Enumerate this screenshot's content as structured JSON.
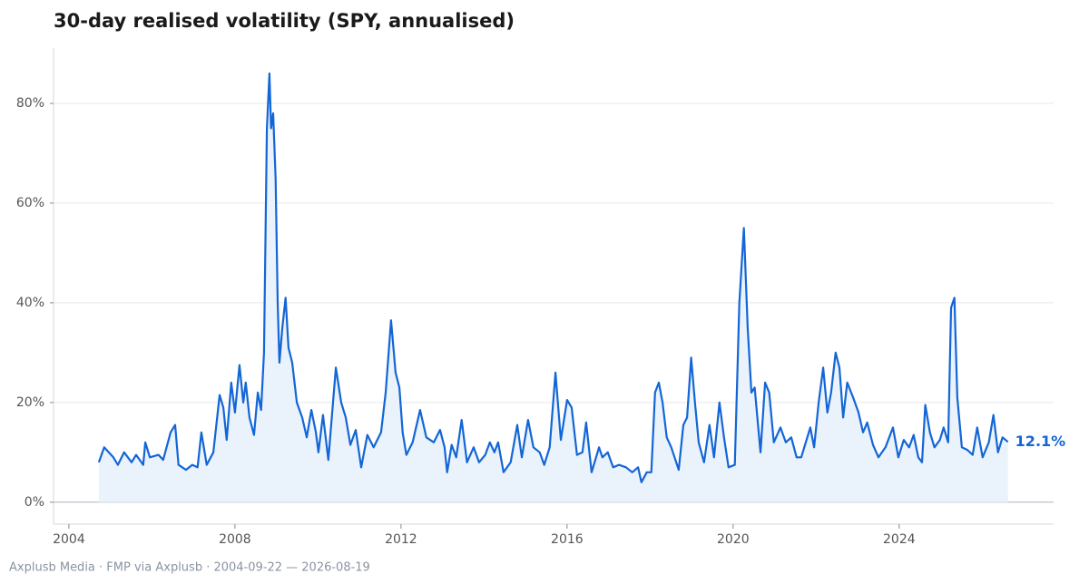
{
  "chart_data": {
    "type": "line",
    "title": "30-day realised volatility (SPY, annualised)",
    "source": "Axplusb Media · FMP via Axplusb · 2004-09-22 — 2026-08-19",
    "color": "#1366d6",
    "fill_color": "#eaf2fb",
    "grid": true,
    "xlim": [
      2003.63,
      2027.72
    ],
    "xticks": [
      2004,
      2008,
      2012,
      2016,
      2020,
      2024
    ],
    "ylim": [
      -4.4,
      91.1
    ],
    "yticks": [
      {
        "value": 0,
        "label": "0%"
      },
      {
        "value": 20,
        "label": "20%"
      },
      {
        "value": 40,
        "label": "40%"
      },
      {
        "value": 60,
        "label": "60%"
      },
      {
        "value": 80,
        "label": "80%"
      }
    ],
    "last_value_label": "12.1%",
    "x": [
      2004.72,
      2004.85,
      2005.07,
      2005.18,
      2005.33,
      2005.51,
      2005.62,
      2005.79,
      2005.84,
      2005.95,
      2006.16,
      2006.27,
      2006.45,
      2006.56,
      2006.64,
      2006.82,
      2006.97,
      2007.1,
      2007.19,
      2007.32,
      2007.48,
      2007.63,
      2007.72,
      2007.8,
      2007.91,
      2008.0,
      2008.11,
      2008.2,
      2008.26,
      2008.35,
      2008.46,
      2008.55,
      2008.63,
      2008.7,
      2008.77,
      2008.83,
      2008.87,
      2008.92,
      2008.98,
      2009.03,
      2009.07,
      2009.14,
      2009.22,
      2009.29,
      2009.38,
      2009.49,
      2009.62,
      2009.73,
      2009.84,
      2009.95,
      2010.01,
      2010.12,
      2010.25,
      2010.43,
      2010.56,
      2010.67,
      2010.78,
      2010.91,
      2011.04,
      2011.19,
      2011.34,
      2011.52,
      2011.63,
      2011.76,
      2011.87,
      2011.96,
      2012.04,
      2012.13,
      2012.28,
      2012.46,
      2012.61,
      2012.79,
      2012.94,
      2013.05,
      2013.11,
      2013.22,
      2013.33,
      2013.46,
      2013.59,
      2013.75,
      2013.88,
      2014.03,
      2014.14,
      2014.25,
      2014.34,
      2014.47,
      2014.64,
      2014.8,
      2014.91,
      2015.06,
      2015.19,
      2015.34,
      2015.45,
      2015.58,
      2015.72,
      2015.85,
      2016.0,
      2016.11,
      2016.24,
      2016.37,
      2016.46,
      2016.59,
      2016.77,
      2016.85,
      2016.98,
      2017.11,
      2017.25,
      2017.42,
      2017.57,
      2017.71,
      2017.79,
      2017.92,
      2018.03,
      2018.12,
      2018.21,
      2018.3,
      2018.4,
      2018.51,
      2018.69,
      2018.8,
      2018.89,
      2018.99,
      2019.08,
      2019.17,
      2019.3,
      2019.43,
      2019.54,
      2019.67,
      2019.78,
      2019.89,
      2020.04,
      2020.15,
      2020.26,
      2020.35,
      2020.44,
      2020.52,
      2020.66,
      2020.77,
      2020.87,
      2020.98,
      2021.14,
      2021.27,
      2021.4,
      2021.53,
      2021.64,
      2021.75,
      2021.86,
      2021.95,
      2022.06,
      2022.17,
      2022.27,
      2022.36,
      2022.47,
      2022.56,
      2022.65,
      2022.75,
      2022.89,
      2023.02,
      2023.13,
      2023.23,
      2023.37,
      2023.5,
      2023.67,
      2023.85,
      2023.98,
      2024.11,
      2024.24,
      2024.35,
      2024.46,
      2024.55,
      2024.63,
      2024.74,
      2024.85,
      2024.98,
      2025.07,
      2025.18,
      2025.25,
      2025.33,
      2025.4,
      2025.51,
      2025.64,
      2025.77,
      2025.88,
      2026.01,
      2026.16,
      2026.27,
      2026.38,
      2026.49,
      2026.62
    ],
    "values": [
      8,
      11,
      9,
      7.5,
      10,
      8,
      9.5,
      7.5,
      12,
      9,
      9.5,
      8.5,
      14,
      15.5,
      7.5,
      6.5,
      7.5,
      7,
      14,
      7.5,
      10,
      21.5,
      19,
      12.5,
      24,
      18,
      27.5,
      20,
      24,
      17,
      13.5,
      22,
      18.5,
      30,
      75,
      86,
      75,
      78,
      65,
      40,
      28,
      35,
      41,
      31,
      28,
      20,
      17,
      13,
      18.5,
      14,
      10,
      17.5,
      8.5,
      27,
      20,
      17,
      11.5,
      14.5,
      7,
      13.5,
      11,
      14,
      22,
      36.5,
      26,
      23,
      14,
      9.5,
      12,
      18.5,
      13,
      12,
      14.5,
      11,
      6,
      11.5,
      9,
      16.5,
      8,
      11,
      8,
      9.5,
      12,
      10,
      12,
      6,
      8,
      15.5,
      9,
      16.5,
      11,
      10,
      7.5,
      11,
      26,
      12.5,
      20.5,
      19,
      9.5,
      10,
      16,
      6,
      11,
      9,
      10,
      7,
      7.5,
      7,
      6,
      7,
      4,
      6,
      6,
      22,
      24,
      20,
      13,
      11,
      6.5,
      15.5,
      17,
      29,
      20,
      12,
      8,
      15.5,
      9,
      20,
      13,
      7,
      7.5,
      40,
      55,
      35,
      22,
      23,
      10,
      24,
      22,
      12,
      15,
      12,
      13,
      9,
      9,
      12,
      15,
      11,
      20,
      27,
      18,
      22,
      30,
      27,
      17,
      24,
      21,
      18,
      14,
      16,
      11.5,
      9,
      11,
      15,
      9,
      12.5,
      11,
      13.5,
      9,
      8,
      19.5,
      14,
      11,
      12.5,
      15,
      12,
      39,
      41,
      21,
      11,
      10.5,
      9.5,
      15,
      9,
      12,
      17.5,
      10,
      13,
      12.1
    ]
  }
}
